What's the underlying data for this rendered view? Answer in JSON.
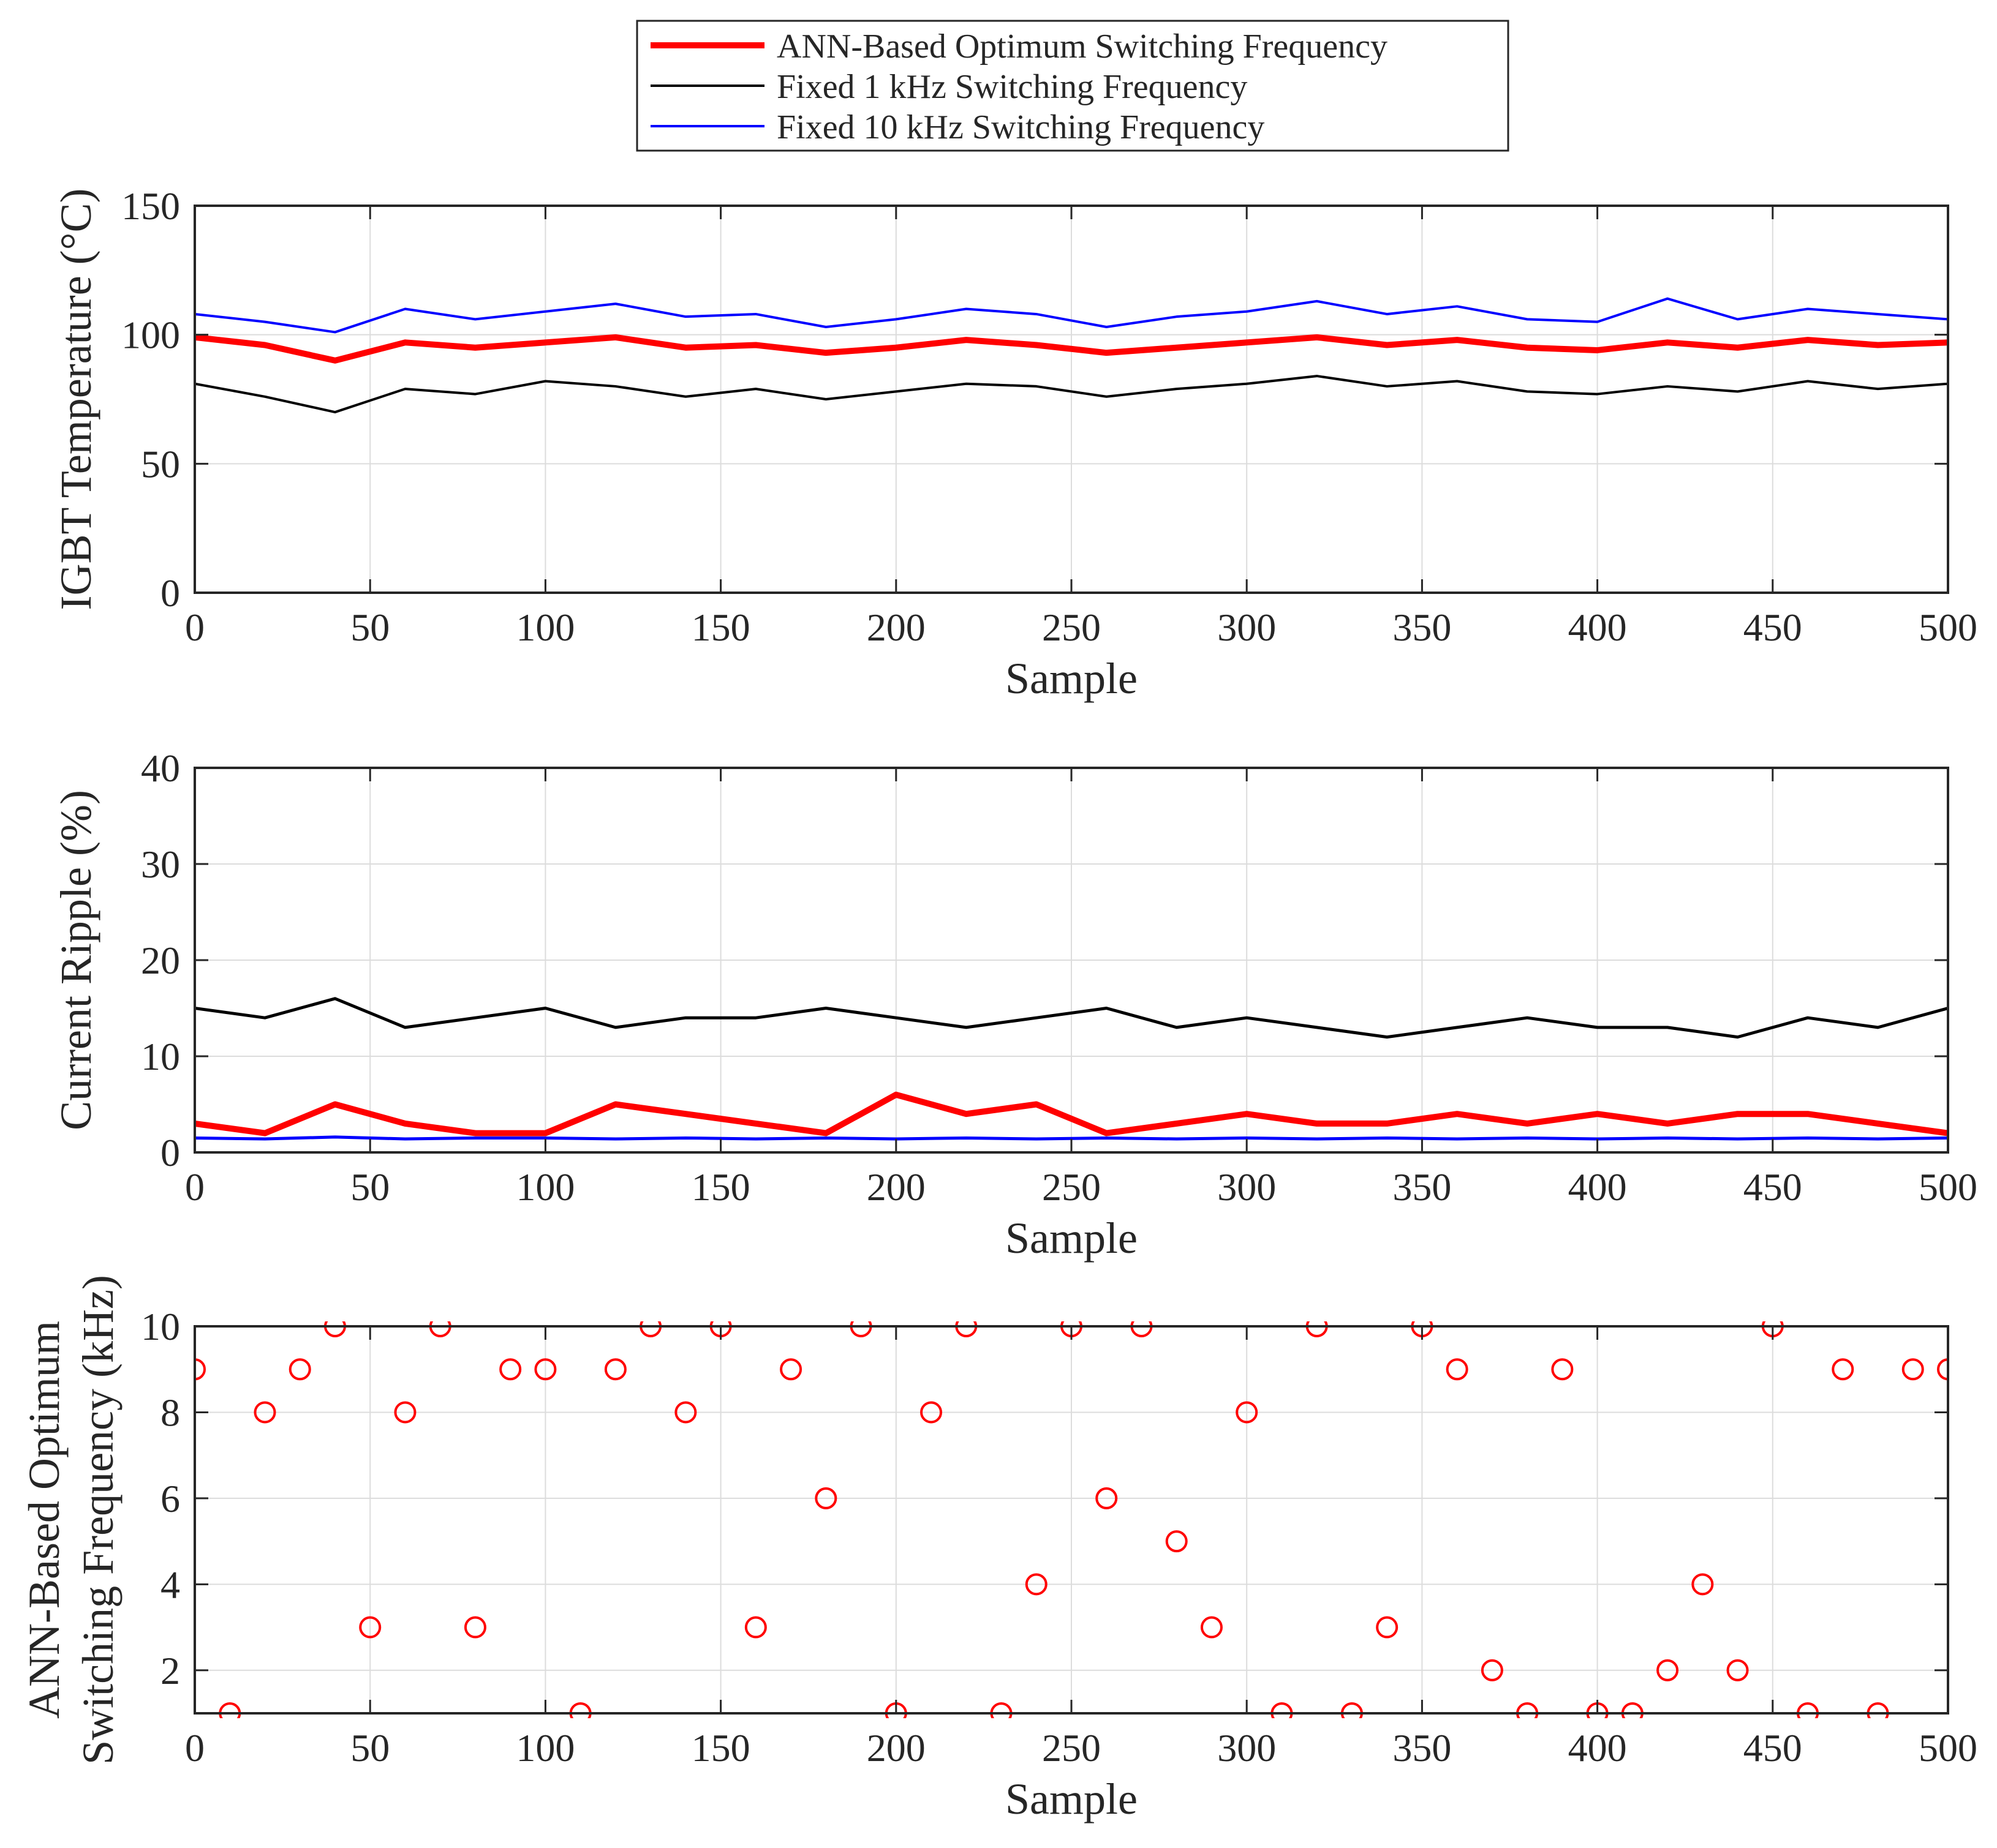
{
  "legend": {
    "entries": [
      {
        "label": "ANN-Based Optimum Switching Frequency",
        "color": "#ff0000"
      },
      {
        "label": "Fixed 1 kHz Switching Frequency",
        "color": "#000000"
      },
      {
        "label": "Fixed 10 kHz Switching Frequency",
        "color": "#0000ff"
      }
    ]
  },
  "chart_data": [
    {
      "type": "line",
      "title": "",
      "xlabel": "Sample",
      "ylabel": "IGBT Temperature (°C)",
      "xlim": [
        0,
        500
      ],
      "ylim": [
        0,
        150
      ],
      "xticks": [
        0,
        50,
        100,
        150,
        200,
        250,
        300,
        350,
        400,
        450,
        500
      ],
      "yticks": [
        0,
        50,
        100,
        150
      ],
      "grid": true,
      "series": [
        {
          "name": "ANN-Based Optimum Switching Frequency",
          "color": "#ff0000",
          "x": [
            0,
            20,
            40,
            60,
            80,
            100,
            120,
            140,
            160,
            180,
            200,
            220,
            240,
            260,
            280,
            300,
            320,
            340,
            360,
            380,
            400,
            420,
            440,
            460,
            480,
            500
          ],
          "values": [
            99,
            96,
            90,
            97,
            95,
            97,
            99,
            95,
            96,
            93,
            95,
            98,
            96,
            93,
            95,
            97,
            99,
            96,
            98,
            95,
            94,
            97,
            95,
            98,
            96,
            97
          ]
        },
        {
          "name": "Fixed 1 kHz Switching Frequency",
          "color": "#000000",
          "x": [
            0,
            20,
            40,
            60,
            80,
            100,
            120,
            140,
            160,
            180,
            200,
            220,
            240,
            260,
            280,
            300,
            320,
            340,
            360,
            380,
            400,
            420,
            440,
            460,
            480,
            500
          ],
          "values": [
            81,
            76,
            70,
            79,
            77,
            82,
            80,
            76,
            79,
            75,
            78,
            81,
            80,
            76,
            79,
            81,
            84,
            80,
            82,
            78,
            77,
            80,
            78,
            82,
            79,
            81
          ]
        },
        {
          "name": "Fixed 10 kHz Switching Frequency",
          "color": "#0000ff",
          "x": [
            0,
            20,
            40,
            60,
            80,
            100,
            120,
            140,
            160,
            180,
            200,
            220,
            240,
            260,
            280,
            300,
            320,
            340,
            360,
            380,
            400,
            420,
            440,
            460,
            480,
            500
          ],
          "values": [
            108,
            105,
            101,
            110,
            106,
            109,
            112,
            107,
            108,
            103,
            106,
            110,
            108,
            103,
            107,
            109,
            113,
            108,
            111,
            106,
            105,
            114,
            106,
            110,
            108,
            106
          ]
        }
      ]
    },
    {
      "type": "line",
      "title": "",
      "xlabel": "Sample",
      "ylabel": "Current Ripple (%)",
      "xlim": [
        0,
        500
      ],
      "ylim": [
        0,
        40
      ],
      "xticks": [
        0,
        50,
        100,
        150,
        200,
        250,
        300,
        350,
        400,
        450,
        500
      ],
      "yticks": [
        0,
        10,
        20,
        30,
        40
      ],
      "grid": true,
      "series": [
        {
          "name": "ANN-Based Optimum Switching Frequency",
          "color": "#ff0000",
          "x": [
            0,
            20,
            40,
            60,
            80,
            100,
            120,
            140,
            160,
            180,
            200,
            220,
            240,
            260,
            280,
            300,
            320,
            340,
            360,
            380,
            400,
            420,
            440,
            460,
            480,
            500
          ],
          "values": [
            3,
            2,
            5,
            3,
            2,
            2,
            5,
            4,
            3,
            2,
            6,
            4,
            5,
            2,
            3,
            4,
            3,
            3,
            4,
            3,
            4,
            3,
            4,
            4,
            3,
            2
          ]
        },
        {
          "name": "Fixed 1 kHz Switching Frequency",
          "color": "#000000",
          "x": [
            0,
            20,
            40,
            60,
            80,
            100,
            120,
            140,
            160,
            180,
            200,
            220,
            240,
            260,
            280,
            300,
            320,
            340,
            360,
            380,
            400,
            420,
            440,
            460,
            480,
            500
          ],
          "values": [
            15,
            14,
            16,
            13,
            14,
            15,
            13,
            14,
            14,
            15,
            14,
            13,
            14,
            15,
            13,
            14,
            13,
            12,
            13,
            14,
            13,
            13,
            12,
            14,
            13,
            15
          ]
        },
        {
          "name": "Fixed 10 kHz Switching Frequency",
          "color": "#0000ff",
          "x": [
            0,
            20,
            40,
            60,
            80,
            100,
            120,
            140,
            160,
            180,
            200,
            220,
            240,
            260,
            280,
            300,
            320,
            340,
            360,
            380,
            400,
            420,
            440,
            460,
            480,
            500
          ],
          "values": [
            1.5,
            1.4,
            1.6,
            1.4,
            1.5,
            1.5,
            1.4,
            1.5,
            1.4,
            1.5,
            1.4,
            1.5,
            1.4,
            1.5,
            1.4,
            1.5,
            1.4,
            1.5,
            1.4,
            1.5,
            1.4,
            1.5,
            1.4,
            1.5,
            1.4,
            1.5
          ]
        }
      ]
    },
    {
      "type": "scatter",
      "title": "",
      "xlabel": "Sample",
      "ylabel": "ANN-Based Optimum Switching Frequency (kHz)",
      "ylabel_lines": [
        "ANN-Based Optimum",
        "Switching Frequency (kHz)"
      ],
      "xlim": [
        0,
        500
      ],
      "ylim": [
        1,
        10
      ],
      "xticks": [
        0,
        50,
        100,
        150,
        200,
        250,
        300,
        350,
        400,
        450,
        500
      ],
      "yticks": [
        2,
        4,
        6,
        8,
        10
      ],
      "grid": true,
      "series": [
        {
          "name": "ANN-Based Optimum Switching Frequency",
          "color": "#ff0000",
          "marker": "circle",
          "x": [
            0,
            10,
            20,
            30,
            40,
            50,
            60,
            70,
            80,
            90,
            100,
            110,
            120,
            130,
            140,
            150,
            160,
            170,
            180,
            190,
            200,
            210,
            220,
            230,
            240,
            250,
            260,
            270,
            280,
            290,
            300,
            310,
            320,
            330,
            340,
            350,
            360,
            370,
            380,
            390,
            400,
            410,
            420,
            430,
            440,
            450,
            460,
            470,
            480,
            490,
            500
          ],
          "values": [
            9,
            1,
            8,
            9,
            10,
            3,
            8,
            10,
            3,
            9,
            9,
            1,
            9,
            10,
            8,
            10,
            3,
            9,
            6,
            10,
            1,
            8,
            10,
            1,
            4,
            10,
            6,
            10,
            5,
            3,
            8,
            1,
            10,
            1,
            3,
            10,
            9,
            2,
            1,
            9,
            1,
            1,
            2,
            4,
            2,
            10,
            1,
            9,
            1,
            9,
            9
          ]
        }
      ]
    }
  ]
}
